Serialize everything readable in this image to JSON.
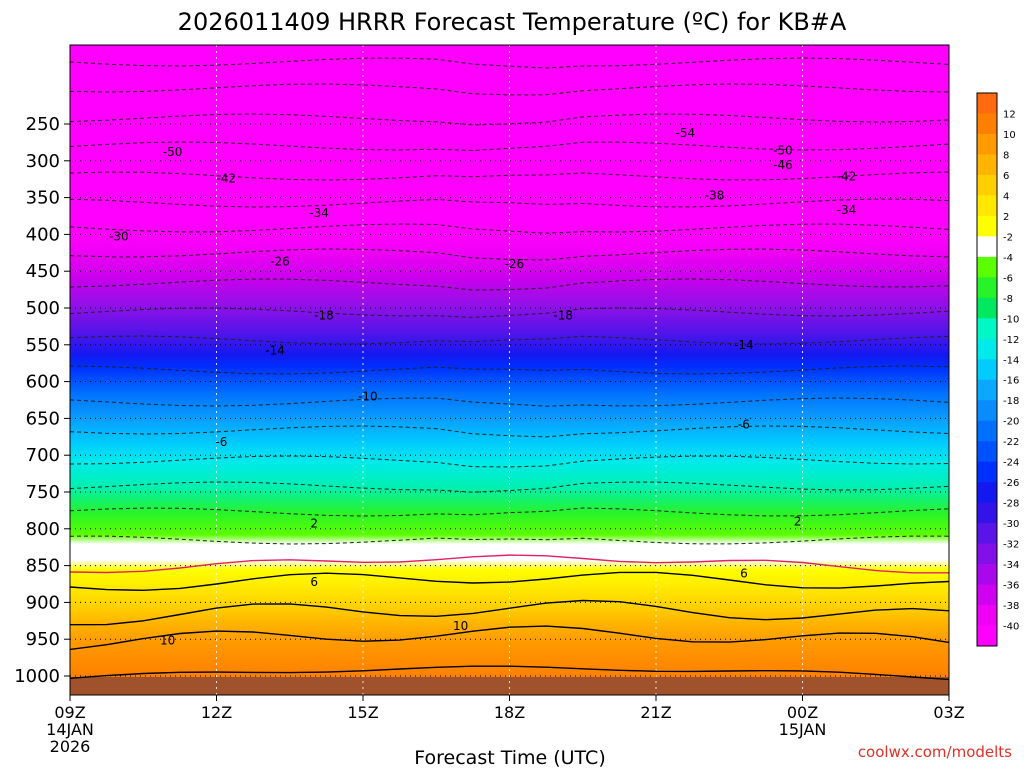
{
  "title": "2026011409 HRRR Forecast Temperature (ºC) for KB#A",
  "xlabel": "Forecast Time (UTC)",
  "credit": "coolwx.com/modelts",
  "chart_data": {
    "type": "heatmap",
    "title": "2026011409 HRRR Forecast Temperature (ºC) for KB#A",
    "xlabel": "Forecast Time (UTC)",
    "ylabel": "",
    "x_ticks": [
      {
        "hour": 0,
        "lines": [
          "09Z",
          "14JAN",
          "2026"
        ]
      },
      {
        "hour": 3,
        "lines": [
          "12Z"
        ]
      },
      {
        "hour": 6,
        "lines": [
          "15Z"
        ]
      },
      {
        "hour": 9,
        "lines": [
          "18Z"
        ]
      },
      {
        "hour": 12,
        "lines": [
          "21Z"
        ]
      },
      {
        "hour": 15,
        "lines": [
          "00Z",
          "15JAN"
        ]
      },
      {
        "hour": 18,
        "lines": [
          "03Z"
        ]
      }
    ],
    "y_ticks": [
      250,
      300,
      350,
      400,
      450,
      500,
      550,
      600,
      650,
      700,
      750,
      800,
      850,
      900,
      950,
      1000
    ],
    "ylim_hpa": [
      200,
      1025
    ],
    "surface_pressure_hpa": 1000,
    "colorbar": {
      "labels": [
        "12",
        "10",
        "8",
        "6",
        "4",
        "2",
        "-2",
        "-4",
        "-6",
        "-8",
        "-10",
        "-12",
        "-14",
        "-16",
        "-18",
        "-20",
        "-22",
        "-24",
        "-26",
        "-28",
        "-30",
        "-32",
        "-34",
        "-36",
        "-38",
        "-40"
      ],
      "colors": [
        "#ff6a10",
        "#ff8000",
        "#ff9a00",
        "#ffb400",
        "#ffcf00",
        "#ffe800",
        "#ffff00",
        "#ffffff",
        "#5cff00",
        "#28f32a",
        "#00e760",
        "#00f8c4",
        "#00eaea",
        "#00ccff",
        "#0aa8ff",
        "#0a8cff",
        "#0070ff",
        "#0052ff",
        "#0030ff",
        "#1418f0",
        "#3214e8",
        "#5a14e8",
        "#8210e8",
        "#aa08ec",
        "#d000f0",
        "#ee00f4",
        "#ff00ff"
      ]
    },
    "contour_labels": [
      {
        "value": "-54",
        "hour": 12.6,
        "hpa": 262
      },
      {
        "value": "-50",
        "hour": 2.1,
        "hpa": 288
      },
      {
        "value": "-50",
        "hour": 14.6,
        "hpa": 286
      },
      {
        "value": "-46",
        "hour": 14.6,
        "hpa": 306
      },
      {
        "value": "-42",
        "hour": 3.2,
        "hpa": 324
      },
      {
        "value": "-42",
        "hour": 15.9,
        "hpa": 321
      },
      {
        "value": "-38",
        "hour": 13.2,
        "hpa": 347
      },
      {
        "value": "-34",
        "hour": 5.1,
        "hpa": 371
      },
      {
        "value": "-34",
        "hour": 15.9,
        "hpa": 367
      },
      {
        "value": "-30",
        "hour": 1.0,
        "hpa": 403
      },
      {
        "value": "-26",
        "hour": 4.3,
        "hpa": 437
      },
      {
        "value": "-26",
        "hour": 9.1,
        "hpa": 440
      },
      {
        "value": "-18",
        "hour": 5.2,
        "hpa": 510
      },
      {
        "value": "-18",
        "hour": 10.1,
        "hpa": 510
      },
      {
        "value": "-14",
        "hour": 4.2,
        "hpa": 558
      },
      {
        "value": "-14",
        "hour": 13.8,
        "hpa": 550
      },
      {
        "value": "-10",
        "hour": 6.1,
        "hpa": 620
      },
      {
        "value": "-6",
        "hour": 3.1,
        "hpa": 682
      },
      {
        "value": "-6",
        "hour": 13.8,
        "hpa": 658
      },
      {
        "value": "2",
        "hour": 5.0,
        "hpa": 793
      },
      {
        "value": "2",
        "hour": 14.9,
        "hpa": 790
      },
      {
        "value": "6",
        "hour": 5.0,
        "hpa": 872
      },
      {
        "value": "6",
        "hour": 13.8,
        "hpa": 861
      },
      {
        "value": "10",
        "hour": 2.0,
        "hpa": 952
      },
      {
        "value": "10",
        "hour": 8.0,
        "hpa": 932
      }
    ]
  }
}
